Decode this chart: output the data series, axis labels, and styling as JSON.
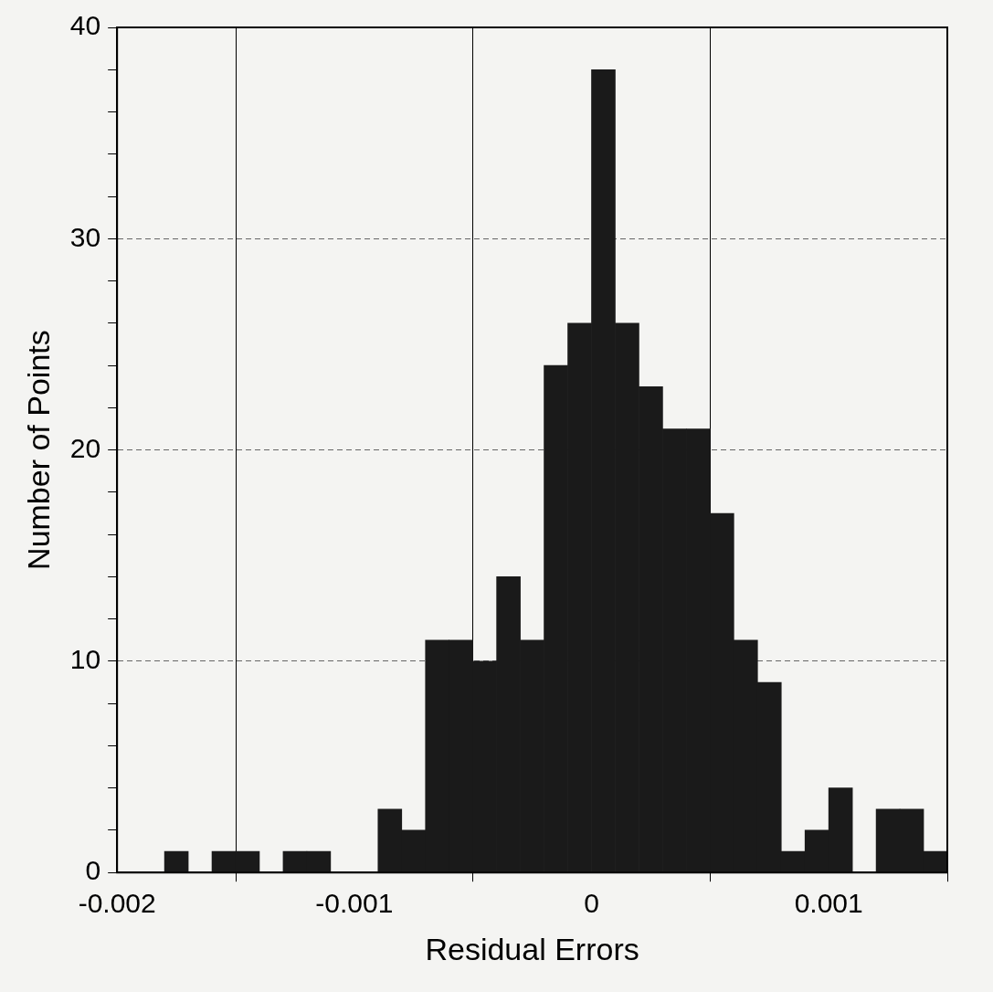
{
  "chart_data": {
    "type": "histogram",
    "xlabel": "Residual Errors",
    "ylabel": "Number of Points",
    "bins": [
      -0.002,
      -0.0019,
      -0.0018,
      -0.0017,
      -0.0016,
      -0.0015,
      -0.0014,
      -0.0013,
      -0.0012,
      -0.0011,
      -0.001,
      -0.0009,
      -0.0008,
      -0.0007,
      -0.0006,
      -0.0005,
      -0.0004,
      -0.0003,
      -0.0002,
      -0.0001,
      0,
      0.0001,
      0.0002,
      0.0003,
      0.0004,
      0.0005,
      0.0006,
      0.0007,
      0.0008,
      0.0009,
      0.001,
      0.0011,
      0.0012,
      0.0013,
      0.0014,
      0.0015
    ],
    "values": [
      0,
      0,
      1,
      0,
      1,
      1,
      0,
      1,
      1,
      0,
      0,
      3,
      2,
      11,
      11,
      10,
      14,
      11,
      24,
      26,
      38,
      26,
      23,
      21,
      21,
      17,
      11,
      9,
      1,
      2,
      4,
      0,
      3,
      3,
      1
    ],
    "color": "#1a1a1a",
    "xlim": [
      -0.002,
      0.0015
    ],
    "xticks": [
      -0.002,
      -0.001,
      0,
      0.001
    ],
    "ylim": [
      0,
      40
    ],
    "yticks": [
      0,
      {
        "value": 2,
        "label": null
      },
      {
        "value": 4,
        "label": null
      },
      {
        "value": 6,
        "label": null
      },
      {
        "value": 8,
        "label": null
      },
      10,
      {
        "value": 12,
        "label": null
      },
      {
        "value": 14,
        "label": null
      },
      {
        "value": 16,
        "label": null
      },
      {
        "value": 18,
        "label": null
      },
      20,
      {
        "value": 22,
        "label": null
      },
      {
        "value": 24,
        "label": null
      },
      {
        "value": 26,
        "label": null
      },
      {
        "value": 28,
        "label": null
      },
      30,
      {
        "value": 32,
        "label": null
      },
      {
        "value": 34,
        "label": null
      },
      {
        "value": 36,
        "label": null
      },
      {
        "value": 38,
        "label": null
      },
      40
    ],
    "grid": true,
    "legend": false
  }
}
